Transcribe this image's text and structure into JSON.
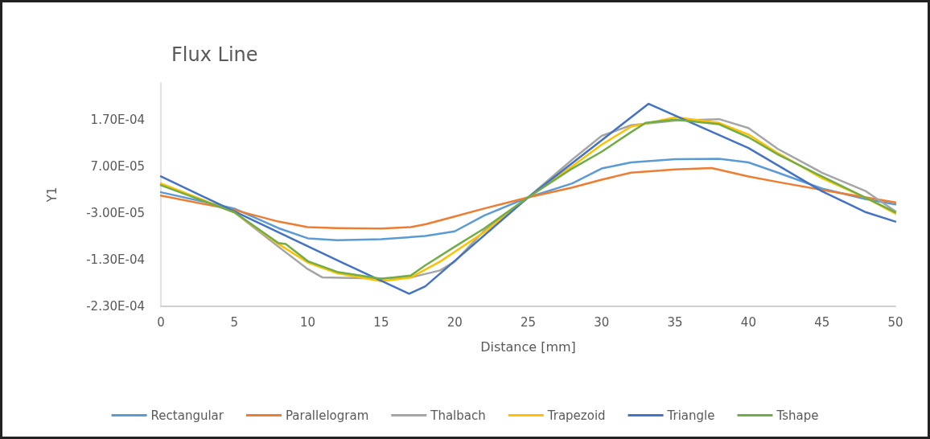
{
  "chart_data": {
    "type": "line",
    "title": "Flux Line",
    "xlabel": "Distance [mm]",
    "ylabel": "Y1",
    "xlim": [
      0,
      50
    ],
    "xticks": [
      0,
      5,
      10,
      15,
      20,
      25,
      30,
      35,
      40,
      45,
      50
    ],
    "ylim": [
      -0.00023,
      0.00025
    ],
    "yticks": [
      {
        "value": -0.00023,
        "label": "-2.30E-04"
      },
      {
        "value": -0.00013,
        "label": "-1.30E-04"
      },
      {
        "value": -3e-05,
        "label": "-3.00E-05"
      },
      {
        "value": 7e-05,
        "label": "7.00E-05"
      },
      {
        "value": 0.00017,
        "label": "1.70E-04"
      }
    ],
    "grid": false,
    "legend": "bottom",
    "marker": "none",
    "line_style": "solid",
    "series": [
      {
        "name": "Rectangular",
        "color": "#5b9bd5",
        "x": [
          0,
          5,
          8,
          10,
          12,
          15,
          18,
          20,
          22,
          25,
          28,
          30,
          32,
          35,
          38,
          40,
          42,
          45,
          48,
          50
        ],
        "values": [
          1.5e-05,
          -2e-05,
          -6.2e-05,
          -8.4e-05,
          -8.8e-05,
          -8.6e-05,
          -7.9e-05,
          -6.9e-05,
          -3.5e-05,
          4e-06,
          3.4e-05,
          6.6e-05,
          7.9e-05,
          8.6e-05,
          8.7e-05,
          7.9e-05,
          5.7e-05,
          2.3e-05,
          0,
          -1.1e-05
        ]
      },
      {
        "name": "Parallelogram",
        "color": "#ed7d31",
        "x": [
          0,
          5,
          8,
          10,
          12,
          15,
          17,
          18,
          20,
          22,
          25,
          28,
          30,
          32,
          35,
          37.5,
          40,
          42,
          45,
          48,
          50
        ],
        "values": [
          8e-06,
          -2.3e-05,
          -4.8e-05,
          -6e-05,
          -6.2e-05,
          -6.3e-05,
          -6e-05,
          -5.4e-05,
          -3.7e-05,
          -2e-05,
          4e-06,
          2.5e-05,
          4.2e-05,
          5.7e-05,
          6.4e-05,
          6.7e-05,
          4.9e-05,
          3.7e-05,
          2e-05,
          4e-06,
          -7e-06
        ]
      },
      {
        "name": "Thalbach",
        "color": "#a5a5a5",
        "x": [
          0,
          5,
          8,
          10,
          11,
          13,
          15,
          17,
          19,
          20,
          22,
          25,
          28,
          30,
          32,
          35,
          38,
          40,
          42,
          45,
          48,
          50
        ],
        "values": [
          3.2e-05,
          -2.8e-05,
          -0.000102,
          -0.00015,
          -0.000168,
          -0.000169,
          -0.00017,
          -0.000168,
          -0.000153,
          -0.000134,
          -6.8e-05,
          4e-06,
          8.5e-05,
          0.000136,
          0.000159,
          0.000169,
          0.000172,
          0.000153,
          0.000108,
          5.7e-05,
          1.7e-05,
          -2.6e-05
        ]
      },
      {
        "name": "Trapezoid",
        "color": "#ffc000",
        "x": [
          0,
          5,
          8,
          10,
          12,
          15,
          17,
          19,
          20,
          22,
          25,
          28,
          30,
          32,
          35,
          38,
          40,
          42,
          45,
          48,
          50
        ],
        "values": [
          3.4e-05,
          -2.8e-05,
          -9.6e-05,
          -0.000136,
          -0.000159,
          -0.000176,
          -0.000168,
          -0.000134,
          -0.000113,
          -7.1e-05,
          4e-06,
          7.1e-05,
          0.000117,
          0.000156,
          0.000176,
          0.000164,
          0.000139,
          9.9e-05,
          4.5e-05,
          3e-06,
          -3.1e-05
        ]
      },
      {
        "name": "Triangle",
        "color": "#4472c4",
        "x": [
          0,
          12.2,
          16.9,
          18,
          25,
          33.2,
          40,
          45,
          48,
          50
        ],
        "values": [
          4.9e-05,
          -0.000134,
          -0.000203,
          -0.000187,
          4e-06,
          0.000205,
          0.00011,
          1.7e-05,
          -2.8e-05,
          -4.8e-05
        ]
      },
      {
        "name": "Tshape",
        "color": "#70ad47",
        "x": [
          0,
          5,
          8,
          8.5,
          10,
          12,
          15,
          17,
          18,
          20,
          22,
          25,
          28,
          30,
          32,
          33,
          35,
          38,
          40,
          42,
          45,
          48,
          50
        ],
        "values": [
          3e-05,
          -2.8e-05,
          -9.4e-05,
          -9.6e-05,
          -0.000133,
          -0.000156,
          -0.000171,
          -0.000164,
          -0.000142,
          -0.000102,
          -6.3e-05,
          4e-06,
          6.6e-05,
          0.000102,
          0.000144,
          0.000164,
          0.000171,
          0.000161,
          0.000133,
          9.6e-05,
          4.9e-05,
          3e-06,
          -2.8e-05
        ]
      }
    ]
  }
}
